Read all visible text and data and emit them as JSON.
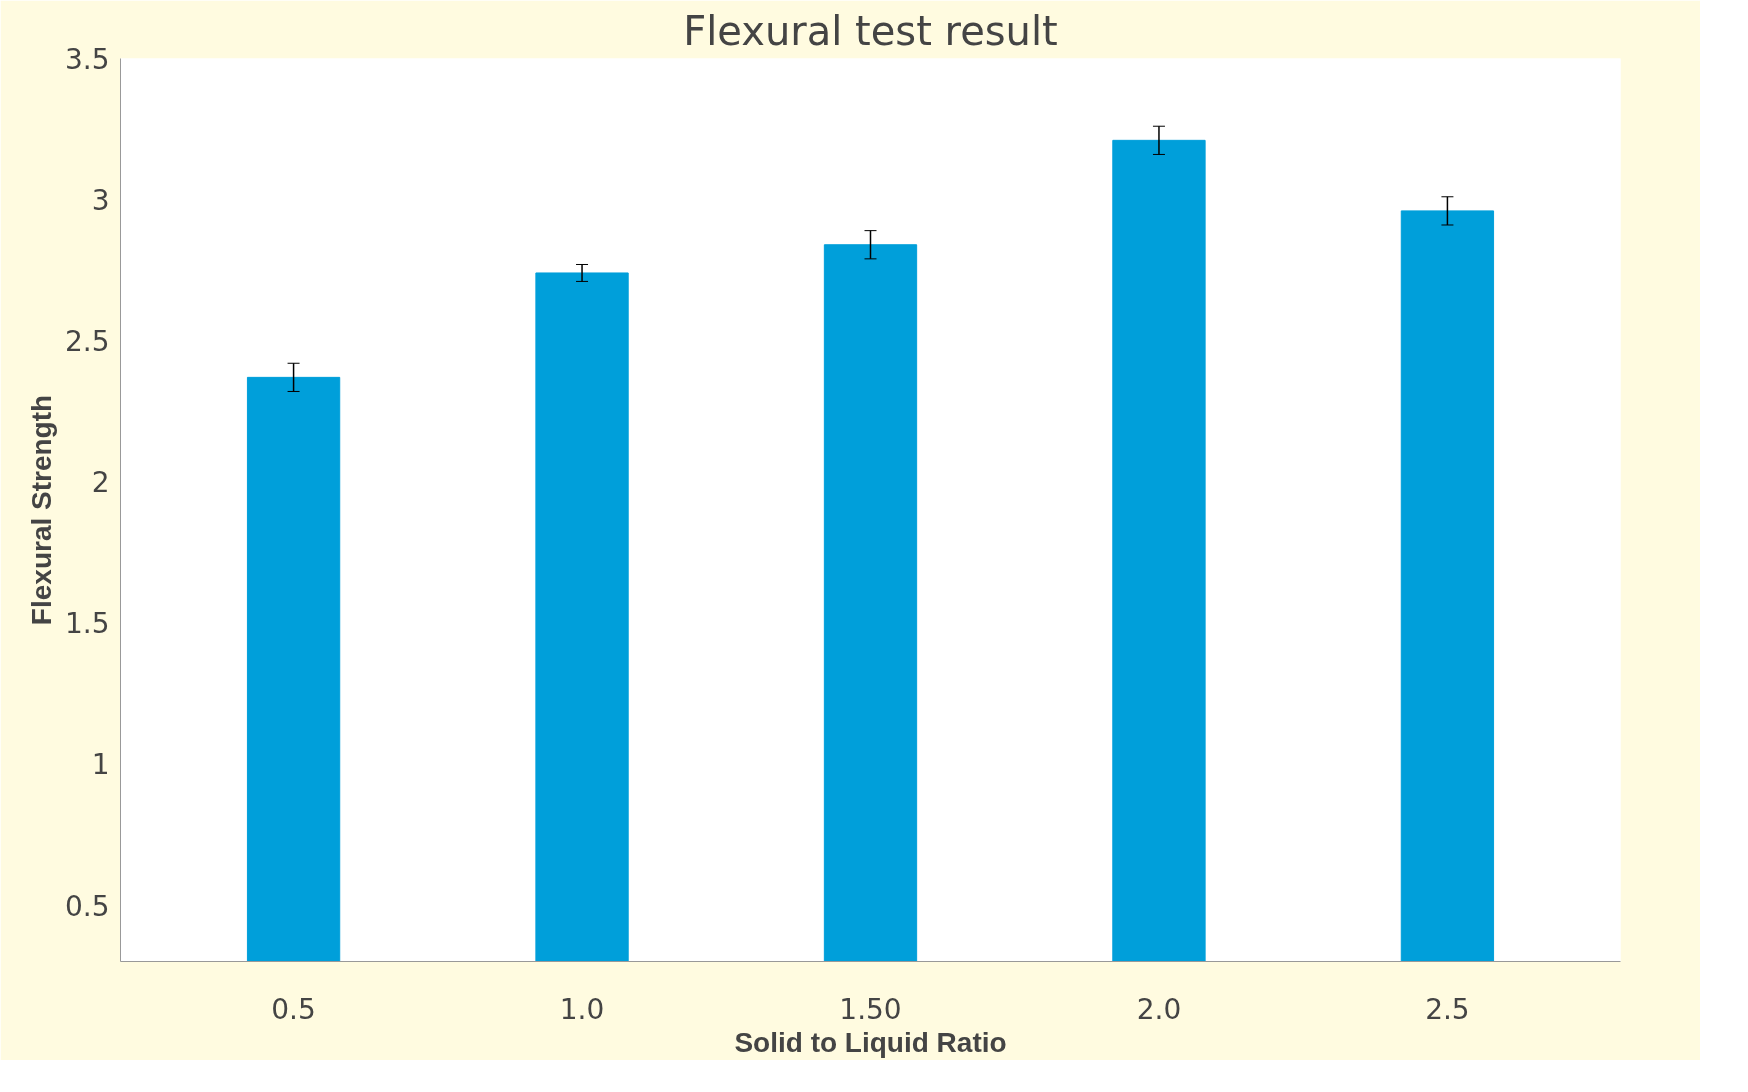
{
  "chart_data": {
    "type": "bar",
    "title": "Flexural test result",
    "xlabel": "Solid to Liquid Ratio",
    "ylabel": "Flexural Strength",
    "categories": [
      "0.5",
      "1.0",
      "1.50",
      "2.0",
      "2.5"
    ],
    "values": [
      2.37,
      2.74,
      2.84,
      3.21,
      2.96
    ],
    "errors": [
      0.05,
      0.03,
      0.05,
      0.05,
      0.05
    ],
    "color": "#009fda",
    "ylim": [
      0.3,
      3.5
    ],
    "yticks": [
      0.5,
      1,
      1.5,
      2,
      2.5,
      3,
      3.5
    ],
    "grid": false
  }
}
